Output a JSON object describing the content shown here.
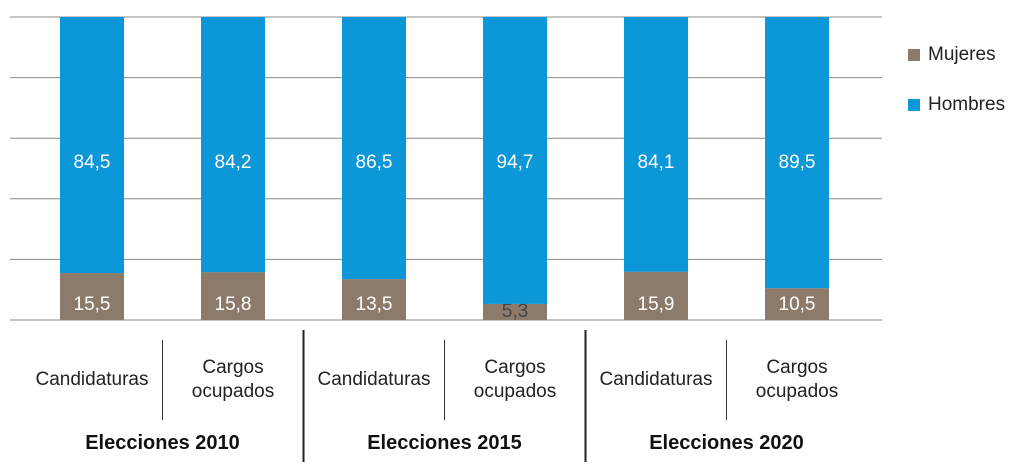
{
  "chart_data": {
    "type": "stacked-bar",
    "categories": [
      "Candidaturas",
      "Cargos ocupados",
      "Candidaturas",
      "Cargos ocupados",
      "Candidaturas",
      "Cargos ocupados"
    ],
    "groups": [
      "Elecciones 2010",
      "Elecciones 2015",
      "Elecciones 2020"
    ],
    "series": [
      {
        "name": "Mujeres",
        "color": "#8c7b6b",
        "values": [
          15.5,
          15.8,
          13.5,
          5.3,
          15.9,
          10.5
        ],
        "value_labels": [
          "15,5",
          "15,8",
          "13,5",
          "5,3",
          "15,9",
          "10,5"
        ]
      },
      {
        "name": "Hombres",
        "color": "#0b97d8",
        "values": [
          84.5,
          84.2,
          86.5,
          94.7,
          84.1,
          89.5
        ],
        "value_labels": [
          "84,5",
          "84,2",
          "86,5",
          "94,7",
          "84,1",
          "89,5"
        ]
      }
    ],
    "ylim": [
      0,
      100
    ],
    "yticks": [
      0,
      20,
      40,
      60,
      80,
      100
    ],
    "grid": true,
    "legend": "right"
  }
}
